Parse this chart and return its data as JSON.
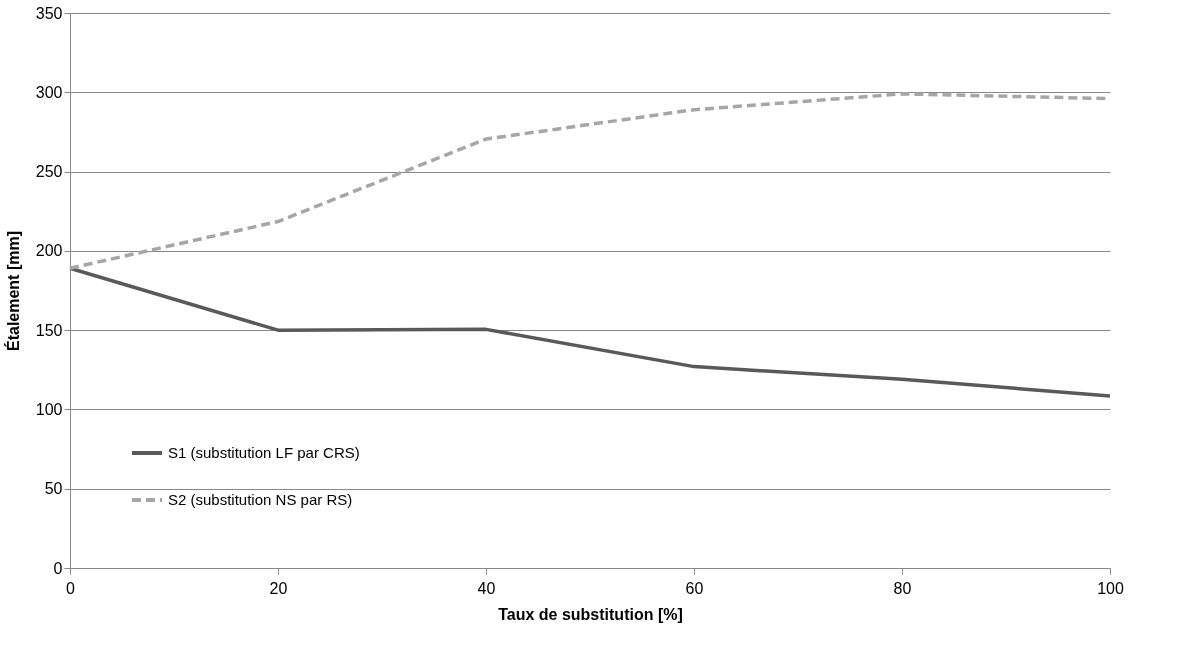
{
  "chart_data": {
    "type": "line",
    "xlabel": "Taux de substitution [%]",
    "ylabel": "Étalement [mm]",
    "x": [
      0,
      20,
      40,
      60,
      80,
      100
    ],
    "series": [
      {
        "name": "S1 (substitution LF par CRS)",
        "color": "#595959",
        "line_style": "solid",
        "values": [
          189,
          150,
          150.5,
          127,
          119,
          108.5
        ]
      },
      {
        "name": "S2 (substitution NS par RS)",
        "color": "#a6a6a6",
        "line_style": "dashed",
        "values": [
          189,
          218.5,
          270.5,
          289,
          299,
          296
        ]
      }
    ],
    "xlim": [
      0,
      100
    ],
    "xticks": [
      0,
      20,
      40,
      60,
      80,
      100
    ],
    "ylim": [
      0,
      350
    ],
    "yticks": [
      0,
      50,
      100,
      150,
      200,
      250,
      300,
      350
    ],
    "grid": "y",
    "legend": "bottom left",
    "marker": "none"
  }
}
